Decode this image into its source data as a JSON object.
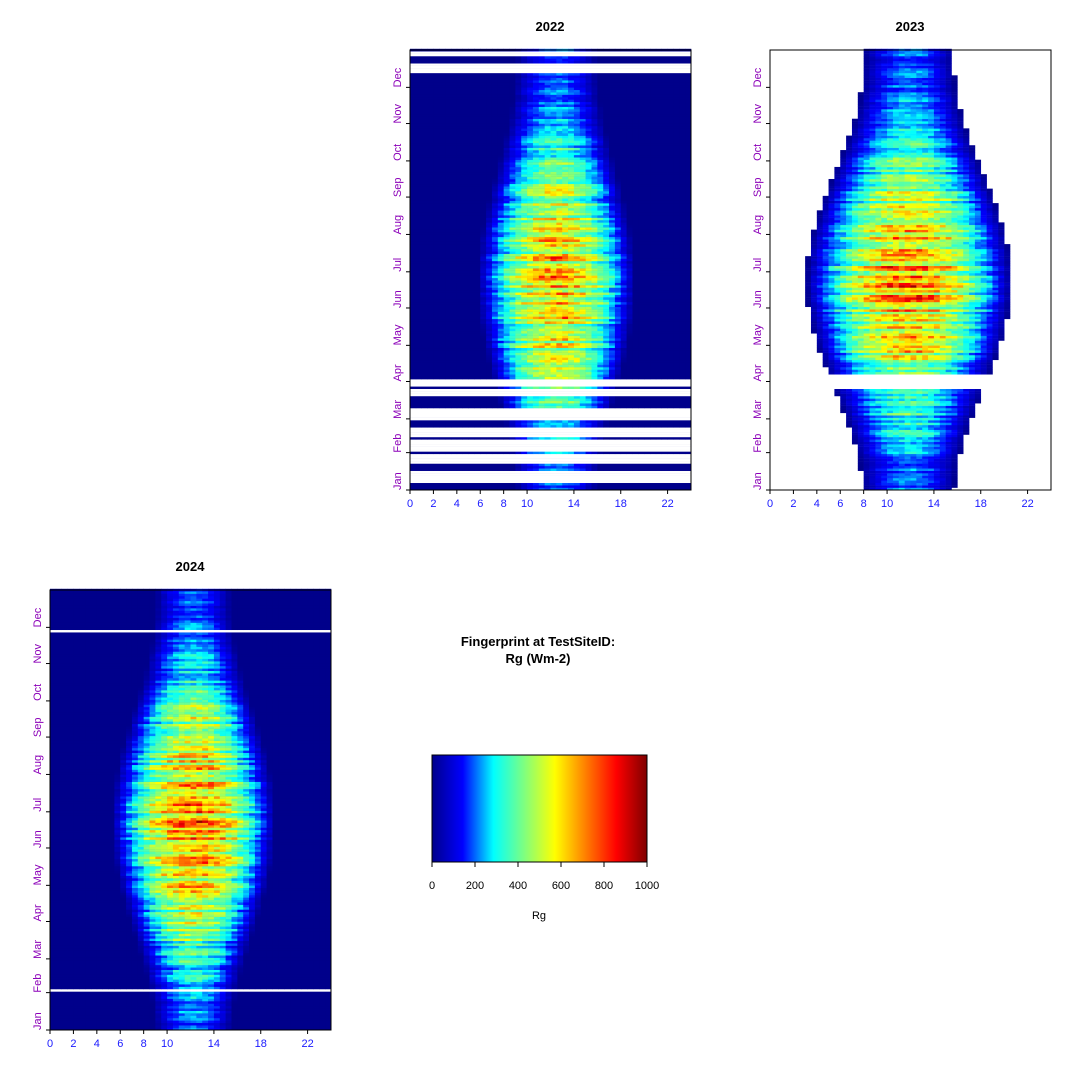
{
  "chart_data": {
    "type": "heatmap",
    "title": "Fingerprint at TestSiteID:",
    "subtitle": "Rg (Wm-2)",
    "variable": "Rg",
    "x_axis": {
      "range": [
        0,
        24
      ],
      "ticks": [
        0,
        2,
        4,
        6,
        8,
        10,
        14,
        18,
        22
      ]
    },
    "y_axis": {
      "months": [
        "Jan",
        "Feb",
        "Mar",
        "Apr",
        "May",
        "Jun",
        "Jul",
        "Aug",
        "Sep",
        "Oct",
        "Nov",
        "Dec"
      ]
    },
    "colorbar": {
      "label": "Rg",
      "range": [
        0,
        1000
      ],
      "ticks": [
        0,
        200,
        400,
        600,
        800,
        1000
      ],
      "colors": [
        "#00008b",
        "#0000ff",
        "#00ffff",
        "#7fff7f",
        "#ffff00",
        "#ff7f00",
        "#ff0000",
        "#7f0000"
      ]
    },
    "panels": [
      {
        "year": "2022",
        "peak_Wm2": 800,
        "window_narrow": [
          9,
          16
        ],
        "window_wide": [
          5,
          18.5
        ],
        "background": "#00008b",
        "missing_days": [
          6,
          7,
          8,
          9,
          10,
          11,
          13,
          14,
          15,
          22,
          23,
          25,
          26,
          28,
          29,
          33,
          34,
          35,
          37,
          38,
          40,
          41,
          44,
          45,
          46,
          48,
          49,
          51,
          58,
          59,
          61,
          62,
          63,
          65,
          66,
          67,
          78,
          79,
          80,
          81,
          82,
          86,
          87,
          88,
          89,
          90,
          347,
          348,
          349,
          350,
          351,
          352,
          353,
          361,
          362,
          363
        ]
      },
      {
        "year": "2023",
        "peak_Wm2": 860,
        "window_narrow": [
          8,
          15.7
        ],
        "window_wide": [
          3.5,
          21
        ],
        "background": "#ffffff",
        "missing_days": [
          85,
          86,
          87,
          88,
          89,
          90,
          91,
          92,
          93,
          94,
          95
        ]
      },
      {
        "year": "2024",
        "peak_Wm2": 880,
        "window_narrow": [
          9,
          15.5
        ],
        "window_wide": [
          5,
          19
        ],
        "background": "#00008b",
        "missing_days": [
          32,
          33,
          330,
          331
        ]
      }
    ]
  }
}
